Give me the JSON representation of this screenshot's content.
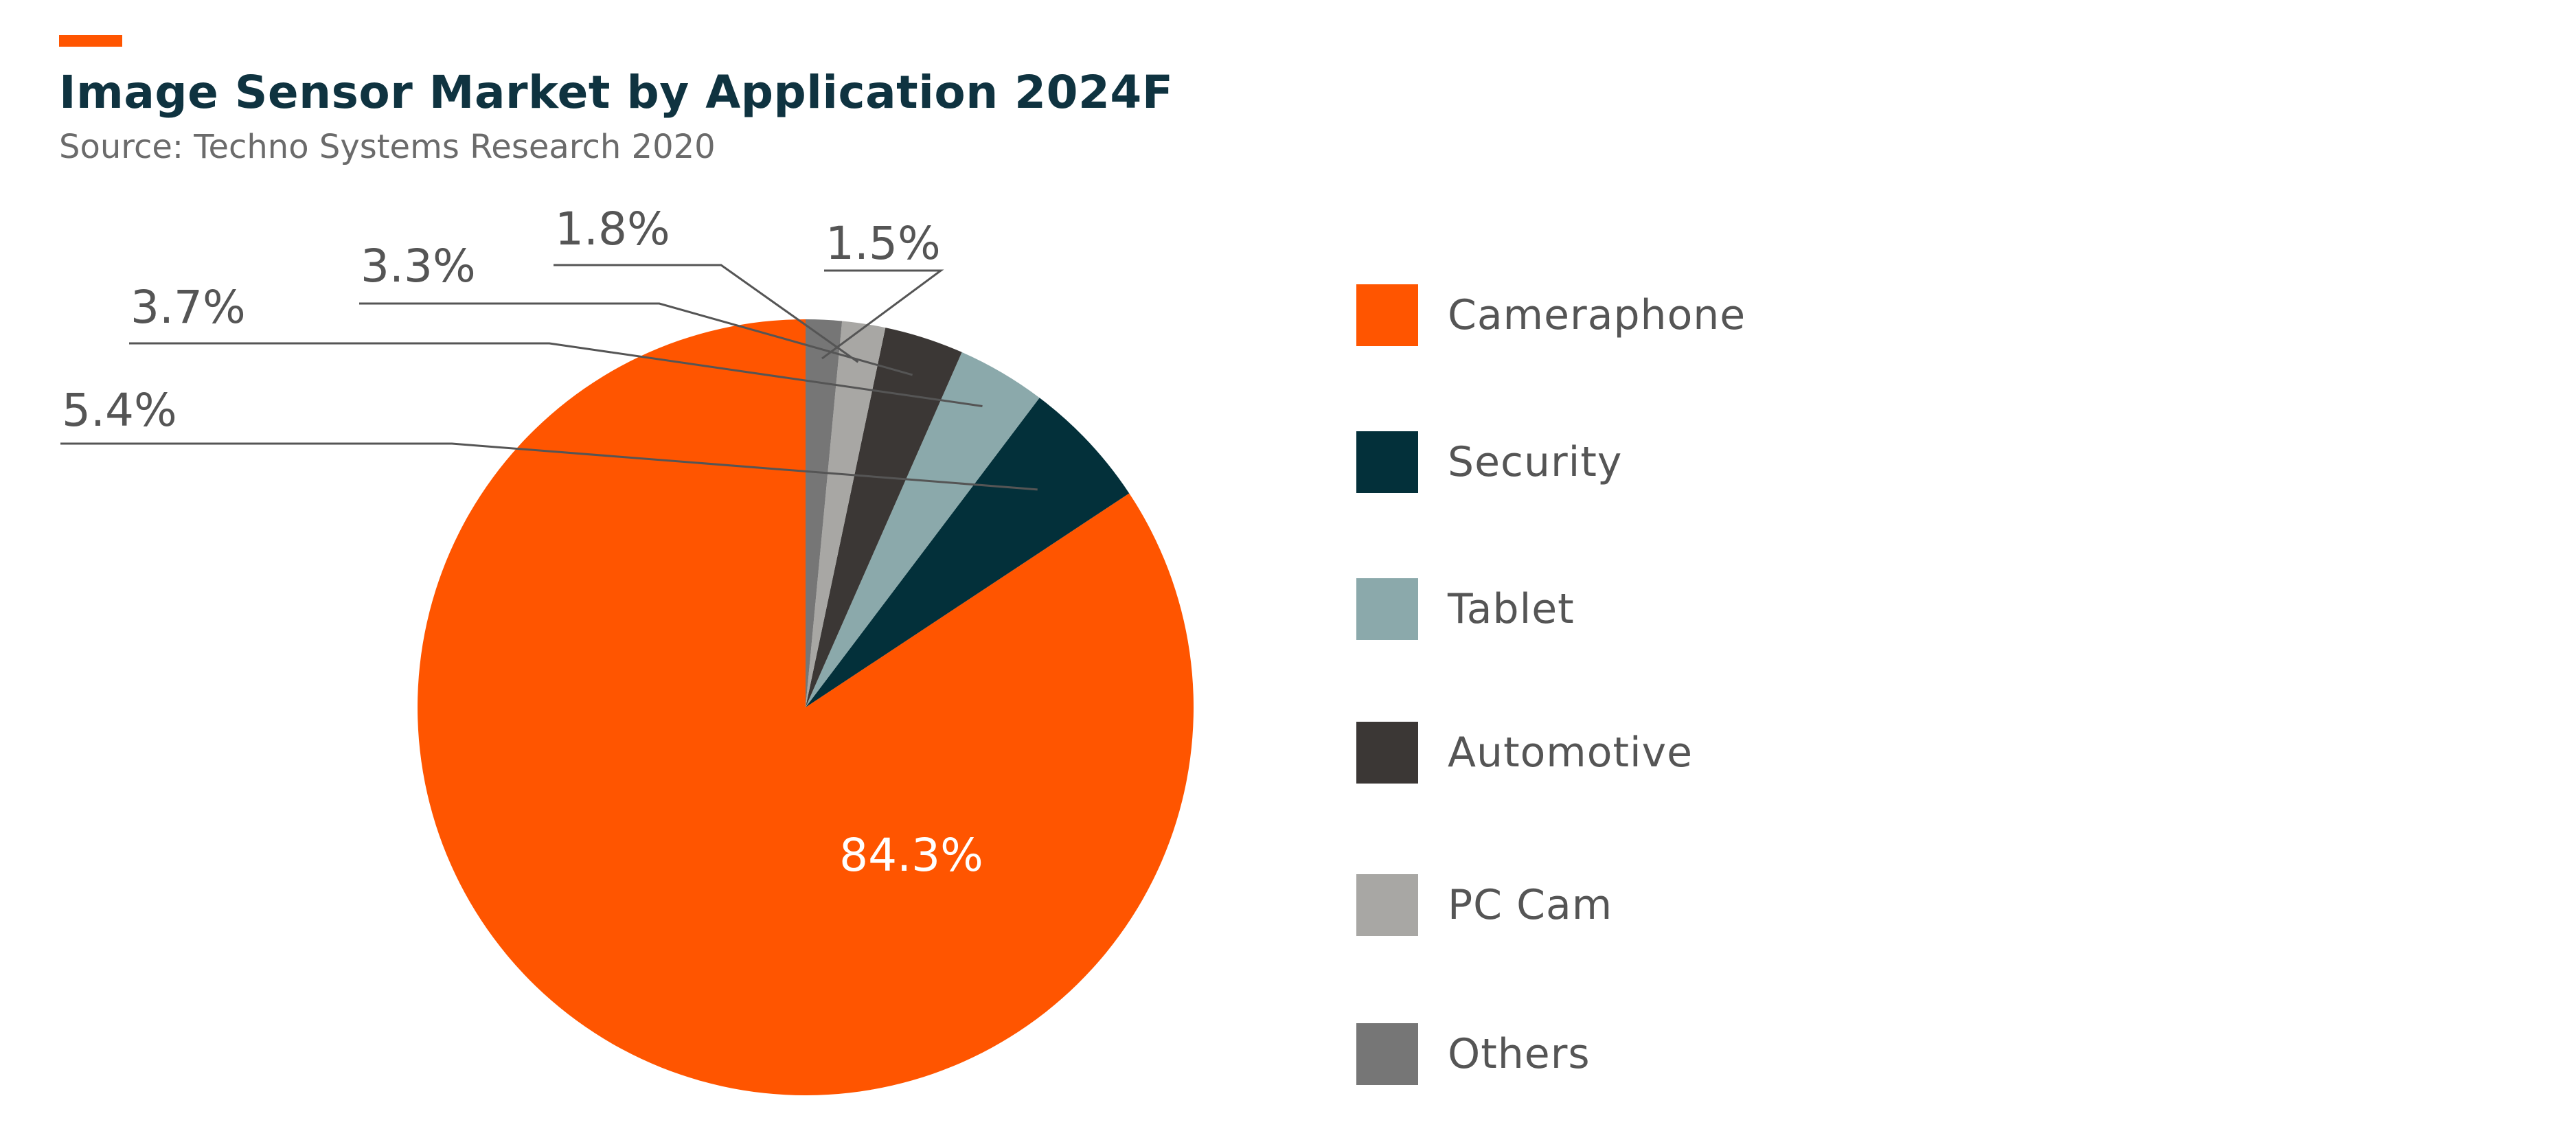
{
  "header": {
    "title": "Image Sensor Market by Application 2024F",
    "subtitle": "Source: Techno Systems Research 2020",
    "accent_color": "#ff5500"
  },
  "chart_data": {
    "type": "pie",
    "title": "Image Sensor Market by Application 2024F",
    "subtitle": "Source: Techno Systems Research 2020",
    "start": "12 o'clock, counterclockwise",
    "slices": [
      {
        "label": "Cameraphone",
        "value": 84.3,
        "value_label": "84.3%",
        "color": "#ff5500"
      },
      {
        "label": "Security",
        "value": 5.4,
        "value_label": "5.4%",
        "color": "#03303a"
      },
      {
        "label": "Tablet",
        "value": 3.7,
        "value_label": "3.7%",
        "color": "#8ba9ab"
      },
      {
        "label": "Automotive",
        "value": 3.3,
        "value_label": "3.3%",
        "color": "#3b3735"
      },
      {
        "label": "PC Cam",
        "value": 1.8,
        "value_label": "1.8%",
        "color": "#a8a7a4"
      },
      {
        "label": "Others",
        "value": 1.5,
        "value_label": "1.5%",
        "color": "#767676"
      }
    ],
    "legend": {
      "placement": "right",
      "items": [
        "Cameraphone",
        "Security",
        "Tablet",
        "Automotive",
        "PC Cam",
        "Others"
      ]
    },
    "data_label_color_inside": "#ffffff",
    "data_label_color_outside": "#555555",
    "leader_line_color": "#555555"
  }
}
